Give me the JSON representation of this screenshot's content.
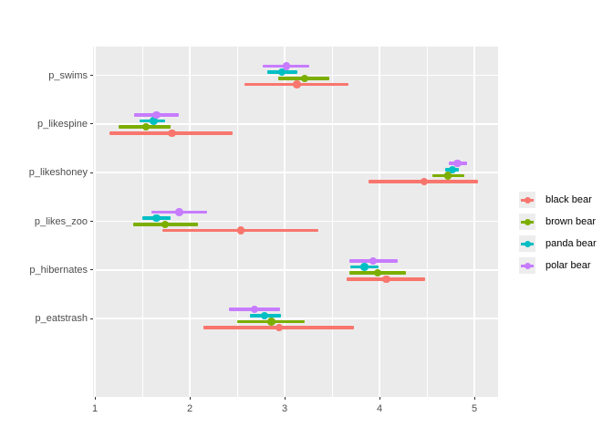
{
  "chart_data": {
    "type": "scatter",
    "subtype": "pointrange-dot-whisker",
    "orientation": "horizontal",
    "title": "",
    "xlabel": "",
    "ylabel": "",
    "x_axis": {
      "domain": [
        0.975,
        5.25
      ],
      "major_ticks": [
        1,
        2,
        3,
        4,
        5
      ],
      "tick_labels": [
        "1",
        "2",
        "3",
        "4",
        "5"
      ],
      "minor_ticks": [
        1.5,
        2.5,
        3.5,
        4.5
      ]
    },
    "categories": [
      "p_swims",
      "p_likespine",
      "p_likeshoney",
      "p_likes_zoo",
      "p_hibernates",
      "p_eatstrash"
    ],
    "series": [
      {
        "name": "black bear",
        "color": "#F8766D",
        "points": [
          {
            "category": "p_swims",
            "est": 3.13,
            "lo": 2.58,
            "hi": 3.67
          },
          {
            "category": "p_likespine",
            "est": 1.81,
            "lo": 1.15,
            "hi": 2.45
          },
          {
            "category": "p_likeshoney",
            "est": 4.47,
            "lo": 3.88,
            "hi": 5.04
          },
          {
            "category": "p_likes_zoo",
            "est": 2.54,
            "lo": 1.71,
            "hi": 3.36
          },
          {
            "category": "p_hibernates",
            "est": 4.07,
            "lo": 3.65,
            "hi": 4.48
          },
          {
            "category": "p_eatstrash",
            "est": 2.94,
            "lo": 2.14,
            "hi": 3.73
          }
        ]
      },
      {
        "name": "brown bear",
        "color": "#7CAE00",
        "points": [
          {
            "category": "p_swims",
            "est": 3.21,
            "lo": 2.93,
            "hi": 3.47
          },
          {
            "category": "p_likespine",
            "est": 1.54,
            "lo": 1.25,
            "hi": 1.8
          },
          {
            "category": "p_likeshoney",
            "est": 4.72,
            "lo": 4.56,
            "hi": 4.89
          },
          {
            "category": "p_likes_zoo",
            "est": 1.74,
            "lo": 1.4,
            "hi": 2.09
          },
          {
            "category": "p_hibernates",
            "est": 3.98,
            "lo": 3.68,
            "hi": 4.28
          },
          {
            "category": "p_eatstrash",
            "est": 2.86,
            "lo": 2.5,
            "hi": 3.21
          }
        ]
      },
      {
        "name": "panda bear",
        "color": "#00BFC4",
        "points": [
          {
            "category": "p_swims",
            "est": 2.97,
            "lo": 2.82,
            "hi": 3.13
          },
          {
            "category": "p_likespine",
            "est": 1.62,
            "lo": 1.47,
            "hi": 1.74
          },
          {
            "category": "p_likeshoney",
            "est": 4.77,
            "lo": 4.69,
            "hi": 4.84
          },
          {
            "category": "p_likes_zoo",
            "est": 1.65,
            "lo": 1.5,
            "hi": 1.8
          },
          {
            "category": "p_hibernates",
            "est": 3.84,
            "lo": 3.69,
            "hi": 3.99
          },
          {
            "category": "p_eatstrash",
            "est": 2.79,
            "lo": 2.63,
            "hi": 2.96
          }
        ]
      },
      {
        "name": "polar bear",
        "color": "#C77CFF",
        "points": [
          {
            "category": "p_swims",
            "est": 3.02,
            "lo": 2.77,
            "hi": 3.26
          },
          {
            "category": "p_likespine",
            "est": 1.65,
            "lo": 1.41,
            "hi": 1.88
          },
          {
            "category": "p_likeshoney",
            "est": 4.82,
            "lo": 4.73,
            "hi": 4.92
          },
          {
            "category": "p_likes_zoo",
            "est": 1.89,
            "lo": 1.6,
            "hi": 2.18
          },
          {
            "category": "p_hibernates",
            "est": 3.93,
            "lo": 3.68,
            "hi": 4.19
          },
          {
            "category": "p_eatstrash",
            "est": 2.68,
            "lo": 2.41,
            "hi": 2.95
          }
        ]
      }
    ],
    "legend": {
      "position": "right",
      "entries": [
        "black bear",
        "brown bear",
        "panda bear",
        "polar bear"
      ]
    }
  },
  "colors": {
    "background": "#FFFFFF",
    "panel_background": "#EBEBEB",
    "gridline": "#FFFFFF",
    "axis_text": "#4D4D4D",
    "tick_mark": "#333333",
    "legend_key_background": "#EDEDED",
    "legend_text": "#000000"
  }
}
